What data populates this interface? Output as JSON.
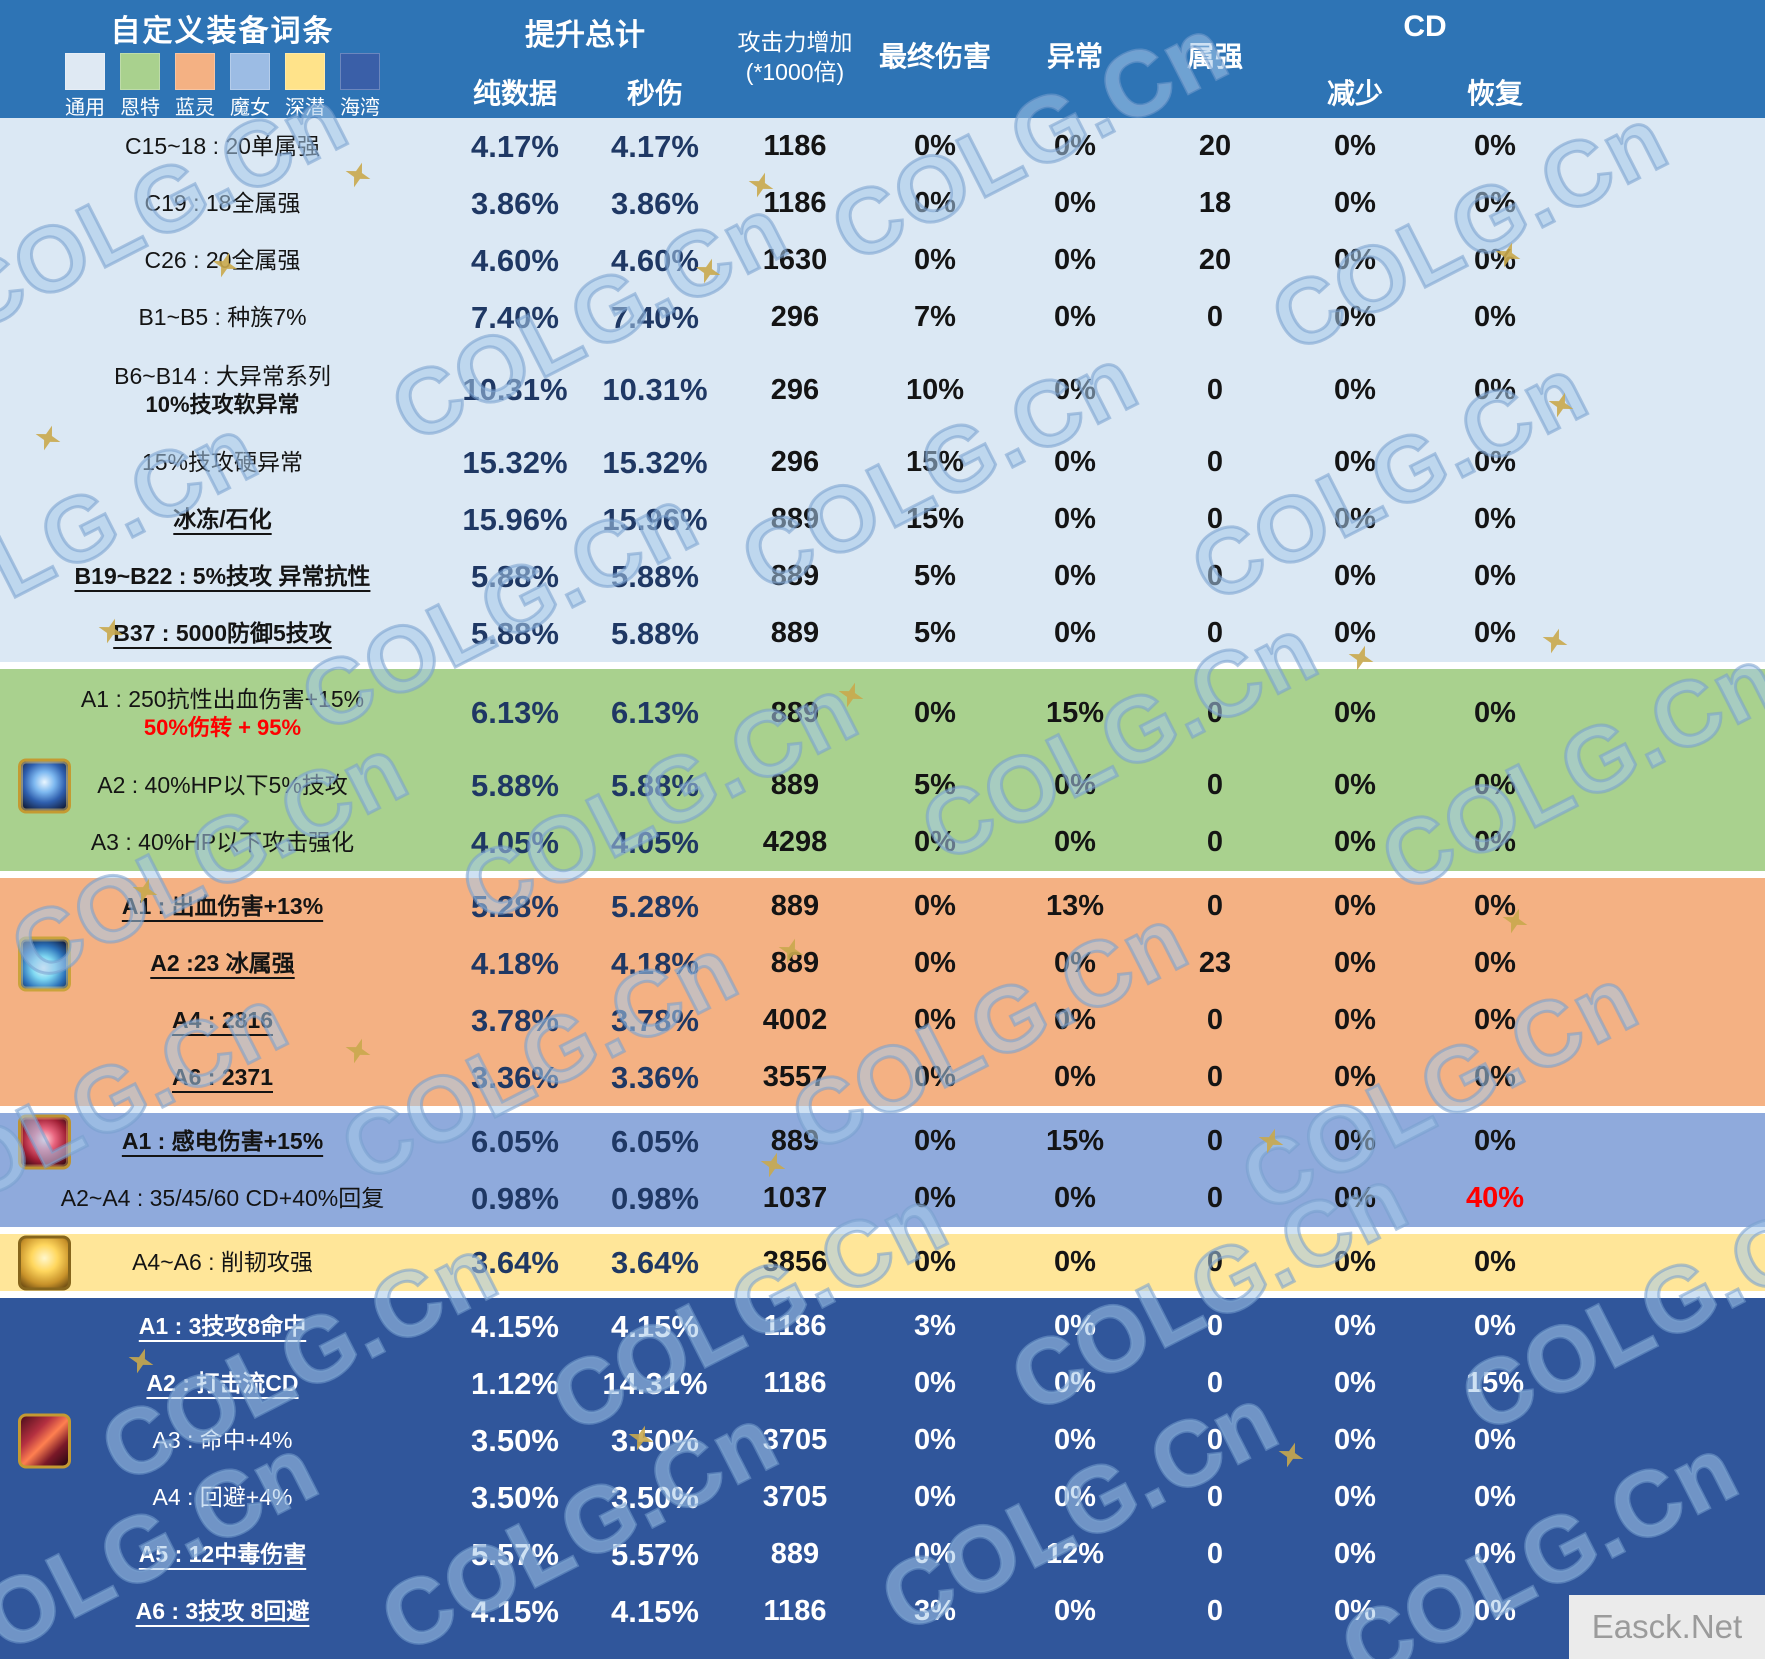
{
  "header": {
    "title": "自定义装备词条",
    "legend": [
      {
        "label": "通用",
        "color": "#dfe9f3"
      },
      {
        "label": "恩特",
        "color": "#a9d18e"
      },
      {
        "label": "蓝灵",
        "color": "#f4b183"
      },
      {
        "label": "魔女",
        "color": "#9cbce4"
      },
      {
        "label": "深潜",
        "color": "#ffe38a"
      },
      {
        "label": "海湾",
        "color": "#3a5fa8"
      }
    ],
    "group_total": "提升总计",
    "col_pure": "纯数据",
    "col_dps": "秒伤",
    "col_atk_line1": "攻击力增加",
    "col_atk_line2": "(*1000倍)",
    "col_final": "最终伤害",
    "col_abnormal": "异常",
    "col_elem": "属强",
    "group_cd": "CD",
    "col_cd_reduce": "减少",
    "col_cd_recover": "恢复"
  },
  "sections": [
    {
      "id": "tongyong",
      "name": "通用",
      "bg": "#dbe8f4",
      "dark": false,
      "rows": [
        {
          "label": "C15~18 : 20单属强",
          "values": [
            "4.17%",
            "4.17%",
            "1186",
            "0%",
            "0%",
            "20",
            "0%",
            "0%"
          ]
        },
        {
          "label": "C19 : 18全属强",
          "values": [
            "3.86%",
            "3.86%",
            "1186",
            "0%",
            "0%",
            "18",
            "0%",
            "0%"
          ]
        },
        {
          "label": "C26 : 20全属强",
          "values": [
            "4.60%",
            "4.60%",
            "1630",
            "0%",
            "0%",
            "20",
            "0%",
            "0%"
          ]
        },
        {
          "label": "B1~B5 : 种族7%",
          "values": [
            "7.40%",
            "7.40%",
            "296",
            "7%",
            "0%",
            "0",
            "0%",
            "0%"
          ]
        },
        {
          "label": "B6~B14 : 大异常系列",
          "sub": "10%技攻软异常",
          "subColor": "#141414",
          "tall": true,
          "values": [
            "10.31%",
            "10.31%",
            "296",
            "10%",
            "0%",
            "0",
            "0%",
            "0%"
          ]
        },
        {
          "label": "15%技攻硬异常",
          "values": [
            "15.32%",
            "15.32%",
            "296",
            "15%",
            "0%",
            "0",
            "0%",
            "0%"
          ]
        },
        {
          "label": "冰冻/石化",
          "u": true,
          "values": [
            "15.96%",
            "15.96%",
            "889",
            "15%",
            "0%",
            "0",
            "0%",
            "0%"
          ]
        },
        {
          "label": "B19~B22 : 5%技攻 异常抗性",
          "u": true,
          "values": [
            "5.88%",
            "5.88%",
            "889",
            "5%",
            "0%",
            "0",
            "0%",
            "0%"
          ]
        },
        {
          "label": "B37 : 5000防御5技攻",
          "u": true,
          "values": [
            "5.88%",
            "5.88%",
            "889",
            "5%",
            "0%",
            "0",
            "0%",
            "0%"
          ]
        }
      ]
    },
    {
      "id": "ente",
      "name": "恩特",
      "bg": "#a9d18e",
      "dark": false,
      "rows": [
        {
          "label": "A1 : 250抗性出血伤害+15%",
          "sub": "50%伤转 + 95%",
          "subColor": "#fe0000",
          "tall": true,
          "values": [
            "6.13%",
            "6.13%",
            "889",
            "0%",
            "15%",
            "0",
            "0%",
            "0%"
          ]
        },
        {
          "label": "A2 : 40%HP以下5%技攻",
          "icon": "sapphire-amulet-icon",
          "values": [
            "5.88%",
            "5.88%",
            "889",
            "5%",
            "0%",
            "0",
            "0%",
            "0%"
          ]
        },
        {
          "label": "A3 : 40%HP以下攻击强化",
          "values": [
            "4.05%",
            "4.05%",
            "4298",
            "0%",
            "0%",
            "0",
            "0%",
            "0%"
          ]
        }
      ]
    },
    {
      "id": "lanling",
      "name": "蓝灵",
      "bg": "#f4b183",
      "dark": false,
      "rows": [
        {
          "label": "A1 : 出血伤害+13%",
          "u": true,
          "values": [
            "5.28%",
            "5.28%",
            "889",
            "0%",
            "13%",
            "0",
            "0%",
            "0%"
          ]
        },
        {
          "label": "A2 :23 冰属强",
          "u": true,
          "icon": "ice-crystal-icon",
          "values": [
            "4.18%",
            "4.18%",
            "889",
            "0%",
            "0%",
            "23",
            "0%",
            "0%"
          ]
        },
        {
          "label": "A4 : 2816",
          "u": true,
          "values": [
            "3.78%",
            "3.78%",
            "4002",
            "0%",
            "0%",
            "0",
            "0%",
            "0%"
          ]
        },
        {
          "label": "A6 : 2371",
          "u": true,
          "values": [
            "3.36%",
            "3.36%",
            "3557",
            "0%",
            "0%",
            "0",
            "0%",
            "0%"
          ]
        }
      ]
    },
    {
      "id": "monv",
      "name": "魔女",
      "bg": "#8faadc",
      "dark": false,
      "rows": [
        {
          "label": "A1 : 感电伤害+15%",
          "u": true,
          "icon": "red-gem-icon",
          "values": [
            "6.05%",
            "6.05%",
            "889",
            "0%",
            "15%",
            "0",
            "0%",
            "0%"
          ]
        },
        {
          "label": "A2~A4 : 35/45/60 CD+40%回复",
          "red": [
            7
          ],
          "values": [
            "0.98%",
            "0.98%",
            "1037",
            "0%",
            "0%",
            "0",
            "0%",
            "40%"
          ]
        }
      ]
    },
    {
      "id": "shenqian",
      "name": "深潜",
      "bg": "#ffe699",
      "dark": false,
      "rows": [
        {
          "label": "A4~A6 : 削韧攻强",
          "icon": "gold-lantern-icon",
          "values": [
            "3.64%",
            "3.64%",
            "3856",
            "0%",
            "0%",
            "0",
            "0%",
            "0%"
          ]
        }
      ]
    },
    {
      "id": "haiwan",
      "name": "海湾",
      "bg": "#30569b",
      "dark": true,
      "rows": [
        {
          "label": "A1 : 3技攻8命中",
          "u": true,
          "values": [
            "4.15%",
            "4.15%",
            "1186",
            "3%",
            "0%",
            "0",
            "0%",
            "0%"
          ]
        },
        {
          "label": "A2 : 打击流CD",
          "u": true,
          "values": [
            "1.12%",
            "14.31%",
            "1186",
            "0%",
            "0%",
            "0",
            "0%",
            "15%"
          ]
        },
        {
          "label": "A3 : 命中+4%",
          "icon": "crimson-blade-icon",
          "values": [
            "3.50%",
            "3.50%",
            "3705",
            "0%",
            "0%",
            "0",
            "0%",
            "0%"
          ]
        },
        {
          "label": "A4 : 回避+4%",
          "values": [
            "3.50%",
            "3.50%",
            "3705",
            "0%",
            "0%",
            "0",
            "0%",
            "0%"
          ]
        },
        {
          "label": "A5 : 12中毒伤害",
          "u": true,
          "values": [
            "5.57%",
            "5.57%",
            "889",
            "0%",
            "12%",
            "0",
            "0%",
            "0%"
          ]
        },
        {
          "label": "A6 : 3技攻 8回避",
          "u": true,
          "values": [
            "4.15%",
            "4.15%",
            "1186",
            "3%",
            "0%",
            "0",
            "0%",
            "0%"
          ]
        }
      ]
    }
  ],
  "watermark": {
    "text": "COLG.Cn",
    "credit": "Easck.Net"
  }
}
